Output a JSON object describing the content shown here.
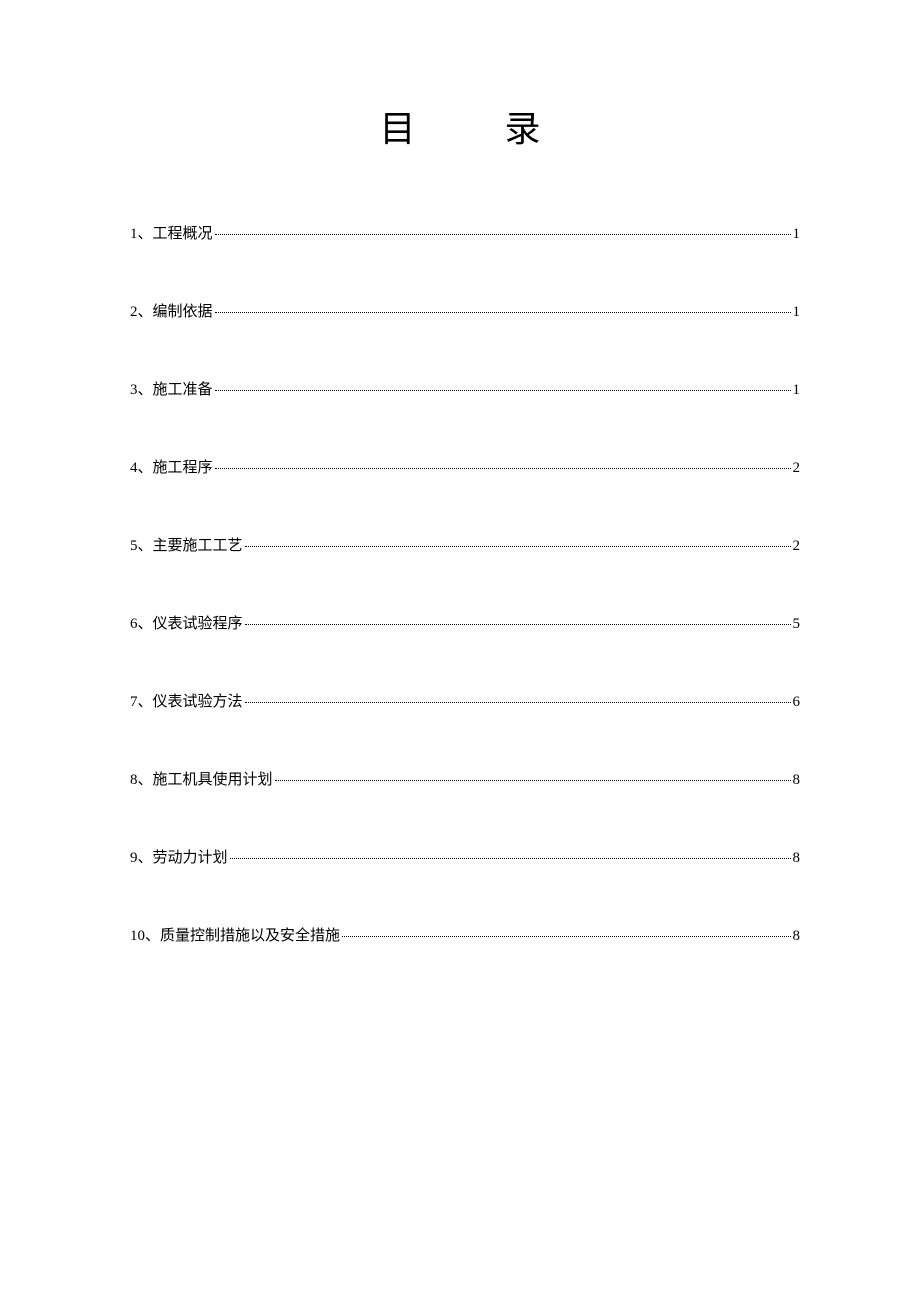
{
  "title": "目 录",
  "toc": [
    {
      "label": "1、工程概况",
      "page": "1"
    },
    {
      "label": "2、编制依据",
      "page": "1"
    },
    {
      "label": "3、施工准备",
      "page": "1"
    },
    {
      "label": "4、施工程序",
      "page": "2"
    },
    {
      "label": "5、主要施工工艺",
      "page": "2"
    },
    {
      "label": "6、仪表试验程序",
      "page": "5"
    },
    {
      "label": "7、仪表试验方法",
      "page": "6"
    },
    {
      "label": "8、施工机具使用计划",
      "page": "8"
    },
    {
      "label": "9、劳动力计划",
      "page": "8"
    },
    {
      "label": "10、质量控制措施以及安全措施",
      "page": "8"
    }
  ],
  "colors": {
    "background": "#ffffff",
    "text": "#000000",
    "dots": "#000000"
  },
  "typography": {
    "title_fontsize": 36,
    "entry_fontsize": 15,
    "font_family": "SimSun"
  }
}
